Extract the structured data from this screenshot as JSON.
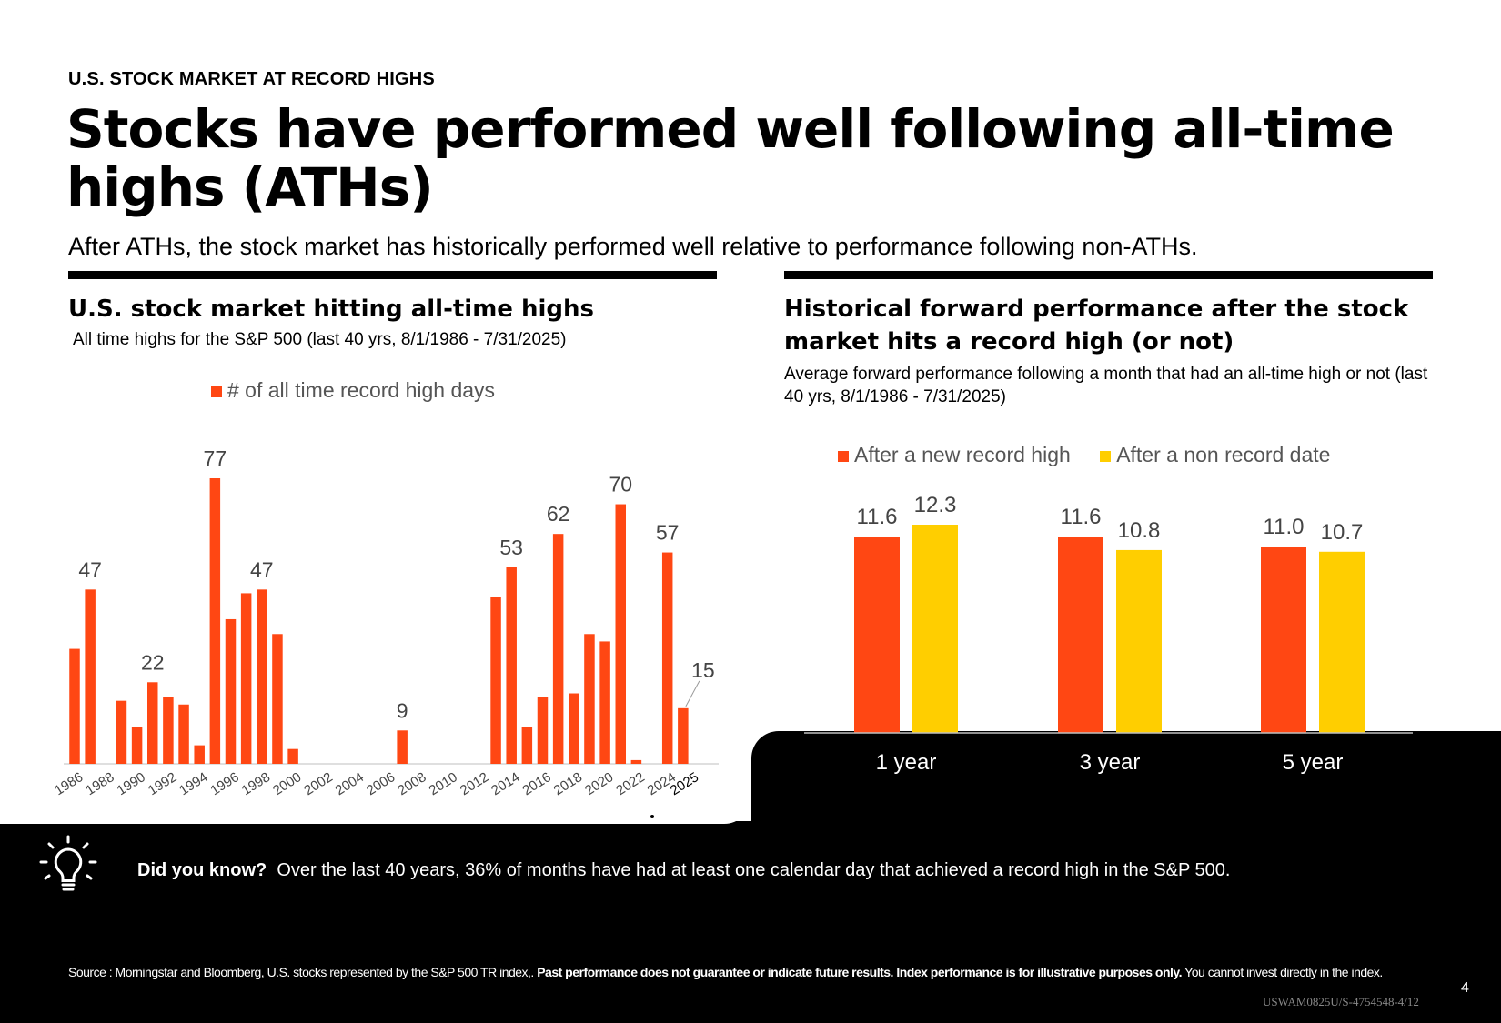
{
  "eyebrow": "U.S. STOCK MARKET AT RECORD HIGHS",
  "title": "Stocks have performed well following all-time highs (ATHs)",
  "subtitle": "After ATHs, the stock market has historically performed well relative to performance following non-ATHs.",
  "left_panel": {
    "title": "U.S. stock market hitting all-time highs",
    "subtitle": "All time highs for the S&P 500 (last 40 yrs, 8/1/1986 - 7/31/2025)"
  },
  "right_panel": {
    "title": "Historical forward performance after the stock market hits a record high (or not)",
    "subtitle": "Average forward performance following a month that had an all-time high or not (last 40 yrs, 8/1/1986 - 7/31/2025)"
  },
  "colors": {
    "orange": "#FF4713",
    "yellow": "#FFCE00",
    "axis": "#bfbfbf"
  },
  "chart_data": [
    {
      "type": "bar",
      "title": "U.S. stock market hitting all-time highs",
      "legend": "# of all time record high days",
      "x": [
        1986,
        1987,
        1988,
        1989,
        1990,
        1991,
        1992,
        1993,
        1994,
        1995,
        1996,
        1997,
        1998,
        1999,
        2000,
        2001,
        2002,
        2003,
        2004,
        2005,
        2006,
        2007,
        2008,
        2009,
        2010,
        2011,
        2012,
        2013,
        2014,
        2015,
        2016,
        2017,
        2018,
        2019,
        2020,
        2021,
        2022,
        2023,
        2024,
        2025
      ],
      "values": [
        31,
        47,
        0,
        17,
        10,
        22,
        18,
        16,
        5,
        77,
        39,
        46,
        47,
        35,
        4,
        0,
        0,
        0,
        0,
        0,
        0,
        9,
        0,
        0,
        0,
        0,
        0,
        45,
        53,
        10,
        18,
        62,
        19,
        35,
        33,
        70,
        1,
        0,
        57,
        15
      ],
      "tick_labels": [
        "1986",
        "1988",
        "1990",
        "1992",
        "1994",
        "1996",
        "1998",
        "2000",
        "2002",
        "2004",
        "2006",
        "2008",
        "2010",
        "2012",
        "2014",
        "2016",
        "2018",
        "2020",
        "2022",
        "2024",
        "2025"
      ],
      "labeled_points": [
        {
          "year": 1987,
          "text": "47"
        },
        {
          "year": 1991,
          "text": "22"
        },
        {
          "year": 1995,
          "text": "77"
        },
        {
          "year": 1998,
          "text": "47"
        },
        {
          "year": 2007,
          "text": "9"
        },
        {
          "year": 2014,
          "text": "53"
        },
        {
          "year": 2017,
          "text": "62"
        },
        {
          "year": 2021,
          "text": "70"
        },
        {
          "year": 2024,
          "text": "57"
        },
        {
          "year": 2025,
          "text": "15"
        }
      ],
      "ylim": [
        0,
        80
      ]
    },
    {
      "type": "bar",
      "title": "Historical forward performance after the stock market hits a record high (or not)",
      "categories": [
        "1 year",
        "3 year",
        "5 year"
      ],
      "series": [
        {
          "name": "After a new record high",
          "values": [
            11.6,
            11.6,
            11.0
          ],
          "labels": [
            "11.6",
            "11.6",
            "11.0"
          ]
        },
        {
          "name": "After a non record date",
          "values": [
            12.3,
            10.8,
            10.7
          ],
          "labels": [
            "12.3",
            "10.8",
            "10.7"
          ]
        }
      ],
      "ylim": [
        0,
        12.3
      ]
    }
  ],
  "did_you_know": {
    "label": "Did you know?",
    "text": "Over the last 40 years, 36% of months have had at least one calendar day that achieved a record high in the S&P 500."
  },
  "source": {
    "prefix": "Source : Morningstar and Bloomberg,  U.S. stocks represented by the S&P 500 TR index,. ",
    "bold": "Past performance does not guarantee or indicate future results. Index performance is for illustrative purposes only.",
    "suffix": " You cannot invest directly in the index."
  },
  "page_number": "4",
  "doc_id": "USWAM0825U/S-4754548-4/12",
  "icons": {
    "bulb": "lightbulb-icon"
  }
}
